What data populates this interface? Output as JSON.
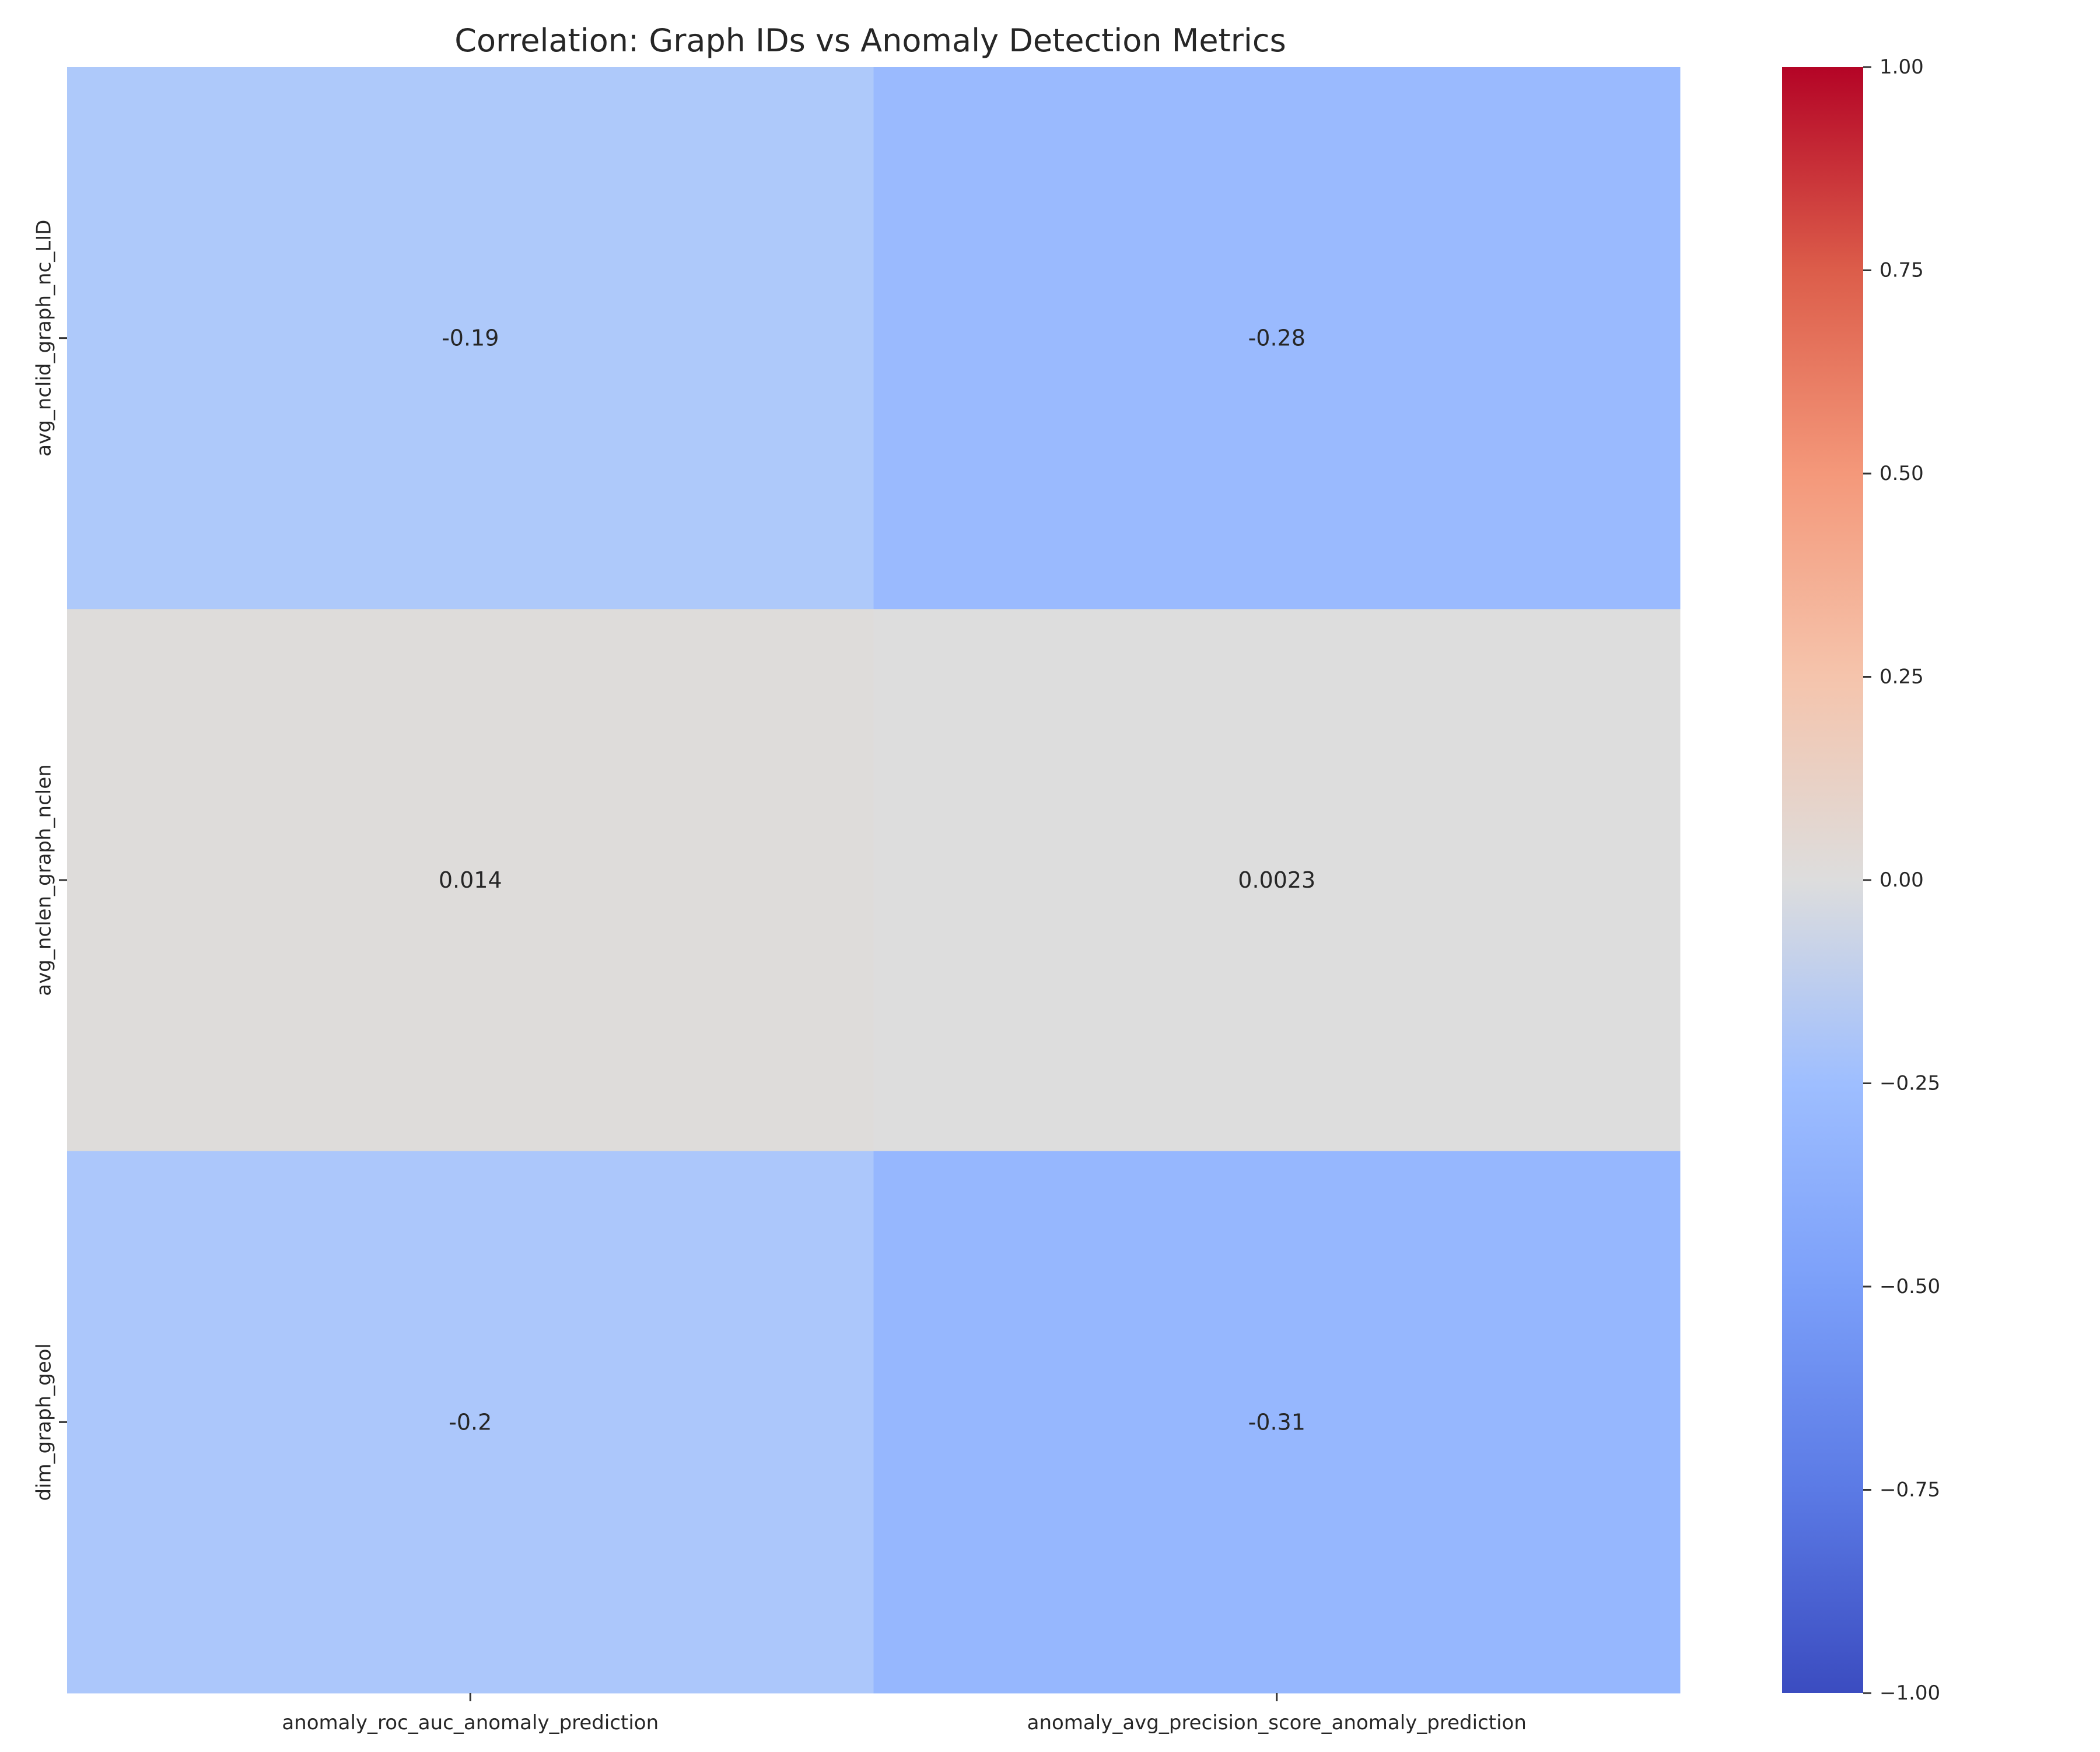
{
  "chart_data": {
    "type": "heatmap",
    "title": "Correlation: Graph IDs vs Anomaly Detection Metrics",
    "columns": [
      "anomaly_roc_auc_anomaly_prediction",
      "anomaly_avg_precision_score_anomaly_prediction"
    ],
    "rows": [
      "avg_nclid_graph_nc_LID",
      "avg_nclen_graph_nclen",
      "dim_graph_geol"
    ],
    "values": [
      [
        -0.19,
        -0.28
      ],
      [
        0.014,
        0.0023
      ],
      [
        -0.2,
        -0.31
      ]
    ],
    "annotations": [
      [
        "-0.19",
        "-0.28"
      ],
      [
        "0.014",
        "0.0023"
      ],
      [
        "-0.2",
        "-0.31"
      ]
    ],
    "colormap": "coolwarm",
    "vmin": -1,
    "vmax": 1,
    "colorbar_ticks": [
      "1.00",
      "0.75",
      "0.50",
      "0.25",
      "0.00",
      "−0.25",
      "−0.50",
      "−0.75",
      "−1.00"
    ],
    "colorbar_values": [
      1,
      0.75,
      0.5,
      0.25,
      0,
      -0.25,
      -0.5,
      -0.75,
      -1
    ],
    "grid": false,
    "legend": "colorbar right"
  },
  "colors": {
    "text": "#262626",
    "tick": "#333333"
  }
}
